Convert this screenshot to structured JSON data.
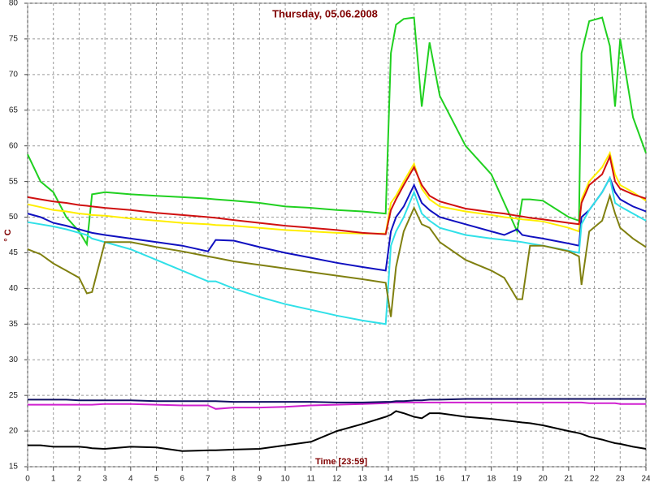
{
  "chart_data": {
    "type": "line",
    "title": "Thursday, 05.06.2008",
    "x_label": "Time [23:59]",
    "y_label": "° C",
    "x": [
      0,
      0.5,
      1,
      1.5,
      2,
      2.3,
      2.5,
      3,
      4,
      5,
      6,
      7,
      7.3,
      8,
      9,
      10,
      11,
      12,
      13,
      13.9,
      14.1,
      14.3,
      14.6,
      15,
      15.3,
      15.6,
      16,
      17,
      18,
      18.5,
      19,
      19.2,
      19.5,
      20,
      21,
      21.4,
      21.5,
      21.8,
      22.3,
      22.6,
      22.8,
      23,
      23.5,
      24
    ],
    "series": [
      {
        "color": "#20d020",
        "values": [
          58.8,
          55,
          53.5,
          50,
          48,
          46.2,
          53.2,
          53.5,
          53.2,
          53,
          52.8,
          52.6,
          52.5,
          52.3,
          52,
          51.5,
          51.3,
          51,
          50.8,
          50.5,
          73,
          77,
          77.8,
          78,
          65.5,
          74.5,
          67,
          60,
          56,
          52,
          48,
          52.5,
          52.5,
          52.3,
          50,
          49.5,
          73,
          77.5,
          78,
          74,
          65.5,
          75,
          64,
          59
        ]
      },
      {
        "color": "#ffee00",
        "values": [
          51.8,
          51.4,
          51,
          50.8,
          50.5,
          50.4,
          50.3,
          50.2,
          49.8,
          49.5,
          49.2,
          49,
          48.9,
          48.8,
          48.5,
          48.2,
          48,
          47.8,
          47.7,
          47.7,
          52,
          53,
          55,
          57.5,
          54,
          52.5,
          51.5,
          50.8,
          50.3,
          50,
          49.8,
          49.7,
          49.6,
          49.4,
          48.5,
          48,
          52.5,
          55,
          57,
          59,
          56,
          54.5,
          53.5,
          52.3
        ]
      },
      {
        "color": "#d01010",
        "values": [
          52.8,
          52.5,
          52.2,
          52,
          51.7,
          51.6,
          51.5,
          51.3,
          51,
          50.6,
          50.3,
          50,
          49.9,
          49.6,
          49.2,
          48.8,
          48.5,
          48.2,
          47.8,
          47.6,
          51,
          52.5,
          54.5,
          57,
          54.5,
          53,
          52.2,
          51.2,
          50.7,
          50.5,
          50.2,
          50.1,
          49.9,
          49.7,
          49.2,
          49,
          52,
          54.5,
          56,
          58.5,
          55,
          54,
          53.2,
          52.6
        ]
      },
      {
        "color": "#1010c0",
        "values": [
          50.5,
          50,
          49.2,
          48.8,
          48.3,
          48,
          47.8,
          47.5,
          47,
          46.5,
          46,
          45.2,
          46.8,
          46.7,
          45.8,
          45,
          44.3,
          43.6,
          43,
          42.5,
          48,
          50,
          51.5,
          54.5,
          52,
          51,
          50,
          49,
          48,
          47.5,
          48.3,
          47.5,
          47.3,
          47,
          46.3,
          46,
          50,
          51,
          53.5,
          55.5,
          53.5,
          52.5,
          51.5,
          50.8
        ]
      },
      {
        "color": "#30e0e8",
        "values": [
          49.3,
          49,
          48.7,
          48.3,
          47.8,
          47.5,
          47,
          46.5,
          45.5,
          44,
          42.5,
          41,
          41,
          40,
          38.8,
          37.8,
          37,
          36.2,
          35.5,
          35,
          46,
          48,
          50,
          53.5,
          50.5,
          49.5,
          48.5,
          47.5,
          47,
          46.8,
          46.6,
          46.5,
          46.3,
          46,
          45.3,
          45,
          49,
          51,
          53.5,
          55.5,
          52,
          51.5,
          50.5,
          49.5
        ]
      },
      {
        "color": "#808010",
        "values": [
          45.5,
          44.8,
          43.5,
          42.5,
          41.5,
          39.3,
          39.5,
          46.5,
          46.5,
          45.8,
          45.2,
          44.5,
          44.3,
          43.8,
          43.3,
          42.8,
          42.3,
          41.8,
          41.3,
          40.8,
          36,
          43,
          48,
          51.3,
          49,
          48.5,
          46.5,
          44,
          42.5,
          41.5,
          38.5,
          38.5,
          46,
          46,
          45.2,
          44.5,
          40.5,
          48,
          49.5,
          53,
          50.5,
          48.5,
          47,
          45.8
        ]
      },
      {
        "color": "#d020d0",
        "values": [
          23.7,
          23.7,
          23.7,
          23.7,
          23.7,
          23.7,
          23.7,
          23.8,
          23.8,
          23.7,
          23.6,
          23.6,
          23.1,
          23.3,
          23.3,
          23.4,
          23.6,
          23.7,
          23.8,
          23.9,
          24,
          24,
          24,
          24,
          24,
          24,
          24,
          24,
          24,
          24,
          24,
          24,
          24,
          24,
          24,
          24,
          24,
          23.9,
          23.9,
          23.9,
          23.9,
          23.8,
          23.8,
          23.8
        ]
      },
      {
        "color": "#101060",
        "values": [
          24.4,
          24.4,
          24.4,
          24.4,
          24.3,
          24.3,
          24.3,
          24.3,
          24.3,
          24.2,
          24.2,
          24.2,
          24.2,
          24.1,
          24.1,
          24.1,
          24.1,
          24,
          24,
          24.1,
          24.1,
          24.2,
          24.2,
          24.3,
          24.3,
          24.4,
          24.4,
          24.5,
          24.5,
          24.5,
          24.5,
          24.5,
          24.5,
          24.5,
          24.5,
          24.5,
          24.5,
          24.5,
          24.5,
          24.5,
          24.5,
          24.5,
          24.5,
          24.5
        ]
      },
      {
        "color": "#000000",
        "values": [
          18,
          18,
          17.8,
          17.8,
          17.8,
          17.7,
          17.6,
          17.5,
          17.8,
          17.7,
          17.2,
          17.3,
          17.3,
          17.4,
          17.5,
          18,
          18.5,
          20,
          21,
          22,
          22.3,
          22.8,
          22.5,
          22,
          21.8,
          22.5,
          22.5,
          22,
          21.7,
          21.5,
          21.3,
          21.2,
          21.1,
          20.8,
          20,
          19.7,
          19.6,
          19.2,
          18.8,
          18.5,
          18.3,
          18.2,
          17.8,
          17.5
        ]
      }
    ],
    "xlim": [
      0,
      24
    ],
    "ylim": [
      15,
      80
    ],
    "xticks": [
      0,
      1,
      2,
      3,
      4,
      5,
      6,
      7,
      8,
      9,
      10,
      11,
      12,
      13,
      14,
      15,
      16,
      17,
      18,
      19,
      20,
      21,
      22,
      23,
      24
    ],
    "yticks": [
      15,
      20,
      25,
      30,
      35,
      40,
      45,
      50,
      55,
      60,
      65,
      70,
      75,
      80
    ],
    "grid": true
  }
}
